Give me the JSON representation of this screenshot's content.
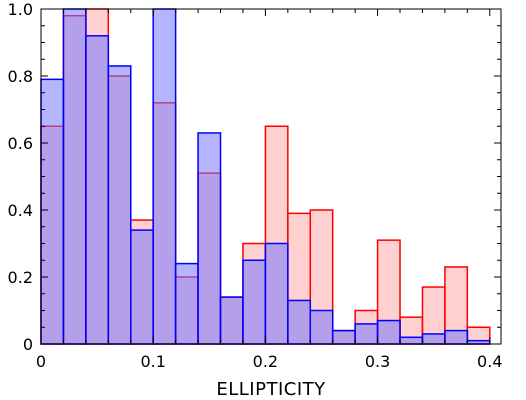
{
  "chart_data": {
    "type": "bar",
    "xlabel": "ELLIPTICITY",
    "ylabel": "",
    "xlim": [
      0,
      0.41
    ],
    "ylim": [
      0,
      1.0
    ],
    "bin_width": 0.02,
    "x_ticks": [
      "0",
      "0.1",
      "0.2",
      "0.3",
      "0.4"
    ],
    "x_tick_values": [
      0,
      0.1,
      0.2,
      0.3,
      0.4
    ],
    "y_ticks": [
      "0",
      "0.2",
      "0.4",
      "0.6",
      "0.8",
      "1.0"
    ],
    "y_tick_values": [
      0,
      0.2,
      0.4,
      0.6,
      0.8,
      1.0
    ],
    "bin_starts": [
      0.0,
      0.02,
      0.04,
      0.06,
      0.08,
      0.1,
      0.12,
      0.14,
      0.16,
      0.18,
      0.2,
      0.22,
      0.24,
      0.26,
      0.28,
      0.3,
      0.32,
      0.34,
      0.36,
      0.38
    ],
    "series": [
      {
        "color": "#ff0000",
        "fill": "#ffaaaa",
        "values": [
          0.65,
          0.98,
          1.0,
          0.8,
          0.37,
          0.72,
          0.2,
          0.51,
          0.14,
          0.3,
          0.65,
          0.39,
          0.4,
          0.04,
          0.1,
          0.31,
          0.08,
          0.17,
          0.23,
          0.05
        ]
      },
      {
        "color": "#0000ff",
        "fill": "#7777ff",
        "values": [
          0.79,
          1.0,
          0.92,
          0.83,
          0.34,
          1.0,
          0.24,
          0.63,
          0.14,
          0.25,
          0.3,
          0.13,
          0.1,
          0.04,
          0.06,
          0.07,
          0.02,
          0.03,
          0.04,
          0.01
        ]
      }
    ],
    "grid": false,
    "legend": "none"
  }
}
